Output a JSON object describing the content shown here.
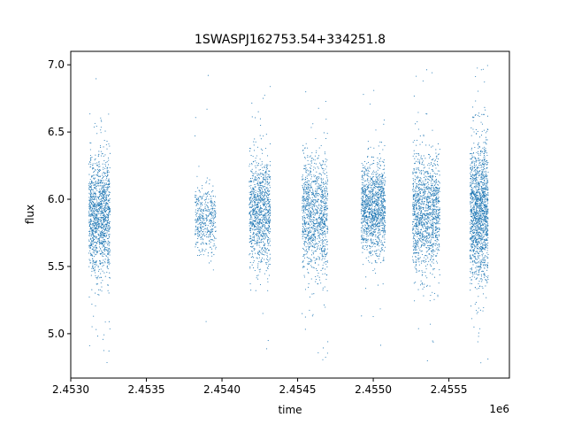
{
  "chart_data": {
    "type": "scatter",
    "title": "1SWASPJ162753.54+334251.8",
    "xlabel": "time",
    "ylabel": "flux",
    "x_offset_label": "1e6",
    "xlim": [
      2453000,
      2455900
    ],
    "ylim": [
      4.67,
      7.1
    ],
    "x_ticks": [
      2453000,
      2453500,
      2454000,
      2454500,
      2455000,
      2455500
    ],
    "x_tick_labels": [
      "2.4530",
      "2.4535",
      "2.4540",
      "2.4545",
      "2.4550",
      "2.4555"
    ],
    "y_ticks": [
      5.0,
      5.5,
      6.0,
      6.5,
      7.0
    ],
    "y_tick_labels": [
      "5.0",
      "5.5",
      "6.0",
      "6.5",
      "7.0"
    ],
    "grid": false,
    "legend": "none",
    "marker_color": "#1f77b4",
    "seasons": [
      {
        "x_range": [
          2453120,
          2453260
        ],
        "flux_center": 5.88,
        "flux_spread": 0.22,
        "min": 4.78,
        "max": 6.95,
        "points": 1300
      },
      {
        "x_range": [
          2453820,
          2453960
        ],
        "flux_center": 5.86,
        "flux_spread": 0.12,
        "min": 4.87,
        "max": 6.95,
        "points": 420
      },
      {
        "x_range": [
          2454180,
          2454320
        ],
        "flux_center": 5.9,
        "flux_spread": 0.2,
        "min": 4.77,
        "max": 6.9,
        "points": 1000
      },
      {
        "x_range": [
          2454530,
          2454700
        ],
        "flux_center": 5.88,
        "flux_spread": 0.22,
        "min": 4.8,
        "max": 6.9,
        "points": 1100
      },
      {
        "x_range": [
          2454920,
          2455080
        ],
        "flux_center": 5.92,
        "flux_spread": 0.17,
        "min": 4.85,
        "max": 6.85,
        "points": 1200
      },
      {
        "x_range": [
          2455260,
          2455440
        ],
        "flux_center": 5.9,
        "flux_spread": 0.21,
        "min": 4.78,
        "max": 6.98,
        "points": 1300
      },
      {
        "x_range": [
          2455640,
          2455760
        ],
        "flux_center": 5.9,
        "flux_spread": 0.26,
        "min": 4.77,
        "max": 7.0,
        "points": 1500
      }
    ]
  }
}
